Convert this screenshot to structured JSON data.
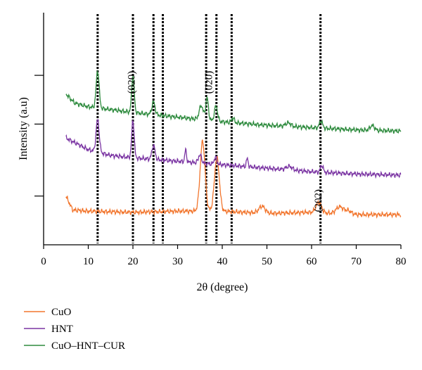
{
  "chart_data": {
    "type": "line",
    "xlabel": "2θ (degree)",
    "ylabel": "Intensity (a.u)",
    "xlim": [
      0,
      80
    ],
    "ylim": [
      0,
      10
    ],
    "xticks": [
      0,
      10,
      20,
      30,
      40,
      50,
      60,
      70,
      80
    ],
    "xtick_labels": [
      "0",
      "10",
      "20",
      "30",
      "40",
      "50",
      "60",
      "70",
      "80"
    ],
    "yticks": [
      2.1,
      5.2,
      7.3
    ],
    "grid": false,
    "legend_position": "bottom-left",
    "reference_lines_x": [
      12.1,
      20.0,
      24.6,
      26.7,
      36.4,
      38.7,
      42.1,
      62.0
    ],
    "annotations": [
      {
        "text": "(020)",
        "x": 19.6,
        "y": 7.0
      },
      {
        "text": "(020)",
        "x": 36.9,
        "y": 7.0
      },
      {
        "text": "(202)",
        "x": 61.4,
        "y": 1.9
      }
    ],
    "series": [
      {
        "name": "CuO",
        "color": "#f2762e",
        "peaks": [
          [
            35.6,
            3.0,
            0.55
          ],
          [
            38.8,
            2.3,
            0.55
          ],
          [
            48.9,
            0.3,
            0.7
          ],
          [
            61.6,
            0.45,
            0.6
          ],
          [
            66.3,
            0.3,
            0.8
          ],
          [
            68.2,
            0.15,
            0.7
          ]
        ],
        "baseline": [
          [
            5,
            2.1
          ],
          [
            6.5,
            1.5
          ],
          [
            10,
            1.45
          ],
          [
            20,
            1.4
          ],
          [
            30,
            1.45
          ],
          [
            40,
            1.45
          ],
          [
            50,
            1.35
          ],
          [
            60,
            1.4
          ],
          [
            70,
            1.3
          ],
          [
            80,
            1.3
          ]
        ]
      },
      {
        "name": "HNT",
        "color": "#7b35a3",
        "peaks": [
          [
            12.1,
            1.4,
            0.35
          ],
          [
            20.0,
            1.6,
            0.28
          ],
          [
            24.6,
            0.6,
            0.35
          ],
          [
            31.8,
            0.5,
            0.2
          ],
          [
            35.0,
            0.35,
            0.35
          ],
          [
            38.5,
            0.3,
            0.3
          ],
          [
            45.6,
            0.35,
            0.2
          ],
          [
            55.0,
            0.15,
            0.7
          ],
          [
            62.3,
            0.3,
            0.3
          ]
        ],
        "baseline": [
          [
            5,
            4.6
          ],
          [
            10,
            4.1
          ],
          [
            15,
            3.85
          ],
          [
            20,
            3.75
          ],
          [
            30,
            3.6
          ],
          [
            40,
            3.45
          ],
          [
            50,
            3.3
          ],
          [
            60,
            3.15
          ],
          [
            70,
            3.05
          ],
          [
            80,
            3.0
          ]
        ]
      },
      {
        "name": "CuO–HNT–CUR",
        "color": "#2e8b3e",
        "peaks": [
          [
            12.1,
            1.6,
            0.33
          ],
          [
            20.0,
            1.6,
            0.28
          ],
          [
            24.6,
            0.55,
            0.35
          ],
          [
            35.3,
            0.6,
            0.45
          ],
          [
            36.6,
            0.95,
            0.3
          ],
          [
            38.6,
            0.65,
            0.35
          ],
          [
            42.4,
            0.2,
            0.3
          ],
          [
            54.8,
            0.15,
            0.6
          ],
          [
            62.1,
            0.3,
            0.35
          ],
          [
            73.6,
            0.2,
            0.5
          ]
        ],
        "baseline": [
          [
            5,
            6.5
          ],
          [
            7,
            6.1
          ],
          [
            10,
            5.95
          ],
          [
            20,
            5.7
          ],
          [
            30,
            5.5
          ],
          [
            40,
            5.3
          ],
          [
            50,
            5.15
          ],
          [
            60,
            5.05
          ],
          [
            70,
            4.95
          ],
          [
            80,
            4.9
          ]
        ]
      }
    ]
  }
}
